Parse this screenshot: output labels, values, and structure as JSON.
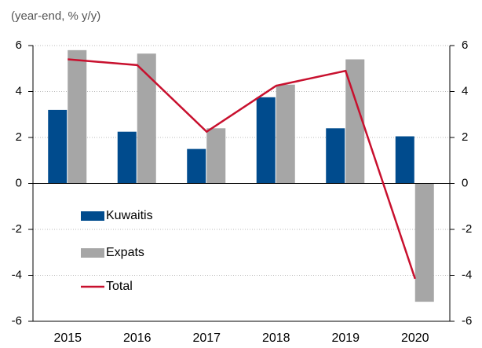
{
  "chart_data": {
    "type": "bar",
    "subtitle": "(year-end, % y/y)",
    "categories": [
      "2015",
      "2016",
      "2017",
      "2018",
      "2019",
      "2020"
    ],
    "series": [
      {
        "name": "Kuwaitis",
        "color": "#004b8d",
        "values": [
          3.2,
          2.25,
          1.5,
          3.75,
          2.4,
          2.05
        ]
      },
      {
        "name": "Expats",
        "color": "#a6a6a6",
        "values": [
          5.8,
          5.65,
          2.4,
          4.3,
          5.4,
          -5.15
        ]
      },
      {
        "name": "Total",
        "color": "#c8102e",
        "type": "line",
        "values": [
          5.4,
          5.15,
          2.25,
          4.25,
          4.9,
          -4.15
        ]
      }
    ],
    "ylim": [
      -6,
      6
    ],
    "yticks": [
      -6,
      -4,
      -2,
      0,
      2,
      4,
      6
    ],
    "y2lim": [
      -6,
      6
    ],
    "y2ticks": [
      -6,
      -4,
      -2,
      0,
      2,
      4,
      6
    ],
    "grid": true,
    "legend": "lower left"
  }
}
